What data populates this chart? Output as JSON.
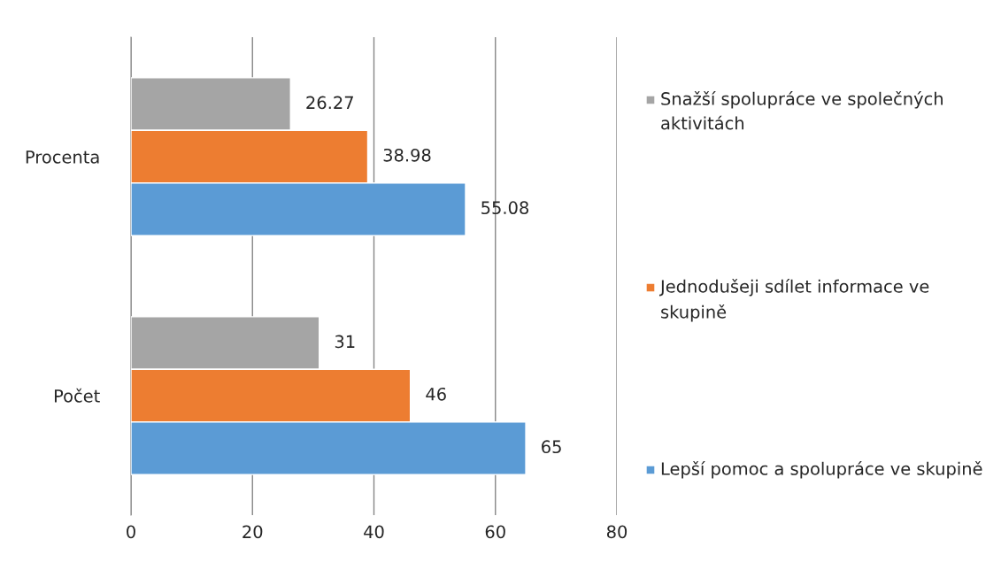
{
  "chart_data": {
    "type": "bar",
    "orientation": "horizontal",
    "categories": [
      "Procenta",
      "Počet"
    ],
    "series": [
      {
        "name": "Snažší spolupráce ve společných aktivitách",
        "color": "#a5a5a5",
        "values": [
          26.27,
          31
        ]
      },
      {
        "name": "Jednodušeji sdílet informace ve skupině",
        "color": "#ed7d31",
        "values": [
          38.98,
          46
        ]
      },
      {
        "name": "Lepší pomoc a spolupráce ve skupině",
        "color": "#5b9bd5",
        "values": [
          55.08,
          65
        ]
      }
    ],
    "xlim": [
      0,
      80
    ],
    "xticks": [
      0,
      20,
      40,
      60,
      80
    ],
    "grid": "x",
    "legend": "right",
    "data_labels": true
  }
}
